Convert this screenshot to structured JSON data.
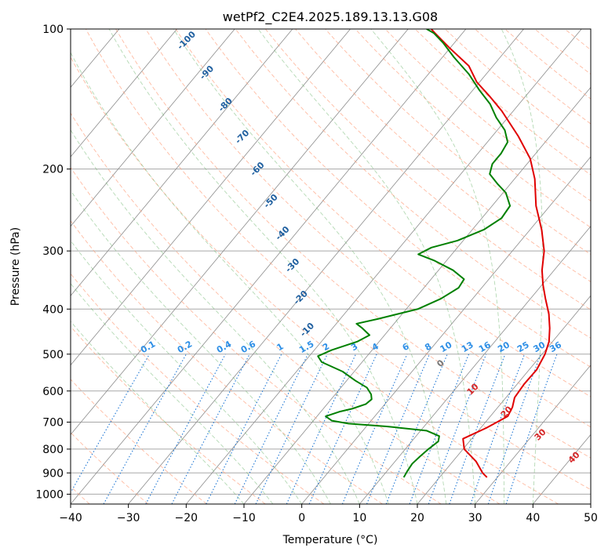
{
  "chart_data": {
    "type": "line",
    "chart_kind": "skew-t log-p diagram",
    "title": "wetPf2_C2E4.2025.189.13.13.G08",
    "xlabel": "Temperature (°C)",
    "ylabel": "Pressure (hPa)",
    "xlim": [
      -40,
      50
    ],
    "ylim": [
      1050,
      100
    ],
    "y_scale": "log",
    "grid": true,
    "x_ticks": [
      -40,
      -30,
      -20,
      -10,
      0,
      10,
      20,
      30,
      40,
      50
    ],
    "x_tick_labels": [
      "−40",
      "−30",
      "−20",
      "−10",
      "0",
      "10",
      "20",
      "30",
      "40",
      "50"
    ],
    "y_ticks": [
      100,
      200,
      300,
      400,
      500,
      600,
      700,
      800,
      900,
      1000
    ],
    "y_tick_labels": [
      "100",
      "200",
      "300",
      "400",
      "500",
      "600",
      "700",
      "800",
      "900",
      "1000"
    ],
    "series": [
      {
        "color": "#e00000",
        "kind": "temperature",
        "points": [
          [
            920,
            28.2
          ],
          [
            900,
            26.8
          ],
          [
            850,
            24.0
          ],
          [
            800,
            20.2
          ],
          [
            760,
            18.5
          ],
          [
            720,
            21.0
          ],
          [
            680,
            23.0
          ],
          [
            650,
            22.5
          ],
          [
            620,
            21.5
          ],
          [
            580,
            21.2
          ],
          [
            540,
            21.3
          ],
          [
            500,
            20.5
          ],
          [
            470,
            19.4
          ],
          [
            440,
            17.6
          ],
          [
            410,
            15.4
          ],
          [
            380,
            12.6
          ],
          [
            355,
            10.2
          ],
          [
            330,
            7.9
          ],
          [
            300,
            5.5
          ],
          [
            270,
            2.0
          ],
          [
            240,
            -2.4
          ],
          [
            210,
            -6.5
          ],
          [
            190,
            -10.2
          ],
          [
            170,
            -15.5
          ],
          [
            150,
            -22.0
          ],
          [
            140,
            -26.0
          ],
          [
            130,
            -30.5
          ],
          [
            120,
            -34.2
          ],
          [
            110,
            -40.0
          ],
          [
            102,
            -44.8
          ],
          [
            100,
            -46.0
          ]
        ]
      },
      {
        "color": "#008000",
        "kind": "dewpoint",
        "points": [
          [
            920,
            13.8
          ],
          [
            890,
            13.5
          ],
          [
            860,
            13.3
          ],
          [
            830,
            13.6
          ],
          [
            800,
            14.0
          ],
          [
            770,
            14.6
          ],
          [
            750,
            14.0
          ],
          [
            730,
            11.0
          ],
          [
            715,
            3.5
          ],
          [
            705,
            -3.5
          ],
          [
            695,
            -6.8
          ],
          [
            680,
            -8.5
          ],
          [
            665,
            -6.8
          ],
          [
            655,
            -5.0
          ],
          [
            640,
            -3.3
          ],
          [
            625,
            -3.0
          ],
          [
            610,
            -3.8
          ],
          [
            590,
            -5.5
          ],
          [
            570,
            -8.5
          ],
          [
            545,
            -12.0
          ],
          [
            520,
            -17.0
          ],
          [
            505,
            -18.5
          ],
          [
            490,
            -17.0
          ],
          [
            470,
            -13.8
          ],
          [
            455,
            -12.6
          ],
          [
            440,
            -14.8
          ],
          [
            430,
            -16.5
          ],
          [
            420,
            -13.5
          ],
          [
            400,
            -8.0
          ],
          [
            380,
            -5.5
          ],
          [
            360,
            -4.0
          ],
          [
            345,
            -4.3
          ],
          [
            330,
            -7.5
          ],
          [
            315,
            -12.0
          ],
          [
            305,
            -15.8
          ],
          [
            295,
            -14.5
          ],
          [
            285,
            -11.0
          ],
          [
            270,
            -8.0
          ],
          [
            255,
            -6.6
          ],
          [
            240,
            -6.9
          ],
          [
            225,
            -9.5
          ],
          [
            215,
            -12.3
          ],
          [
            205,
            -15.0
          ],
          [
            195,
            -16.0
          ],
          [
            185,
            -16.0
          ],
          [
            175,
            -16.5
          ],
          [
            165,
            -18.7
          ],
          [
            155,
            -22.0
          ],
          [
            145,
            -25.0
          ],
          [
            135,
            -29.0
          ],
          [
            125,
            -33.0
          ],
          [
            115,
            -38.0
          ],
          [
            107,
            -42.0
          ],
          [
            102,
            -45.0
          ],
          [
            100,
            -46.8
          ]
        ]
      }
    ],
    "dry_adiabat_labels": [
      "-100",
      "-90",
      "-80",
      "-70",
      "-60",
      "-50",
      "-40",
      "-30",
      "-20",
      "-10",
      "0",
      "10",
      "20",
      "30",
      "40"
    ],
    "mixing_ratio_labels": [
      "0.1",
      "0.2",
      "0.4",
      "0.6",
      "1",
      "1.5",
      "2",
      "3",
      "4",
      "6",
      "8",
      "10",
      "13",
      "16",
      "20",
      "25",
      "30",
      "36"
    ],
    "colors": {
      "isotherm": "#8c8c8c",
      "isobar": "#a8a8a8",
      "dry_adiabat": "#ff9e7a",
      "moist_adiabat": "#6ab46a",
      "mixing_ratio": "#1f77d4",
      "label_dark": "#1f5f9f",
      "label_light": "#2e8fe6",
      "label_red": "#d62728",
      "label_gray": "#777777"
    }
  }
}
